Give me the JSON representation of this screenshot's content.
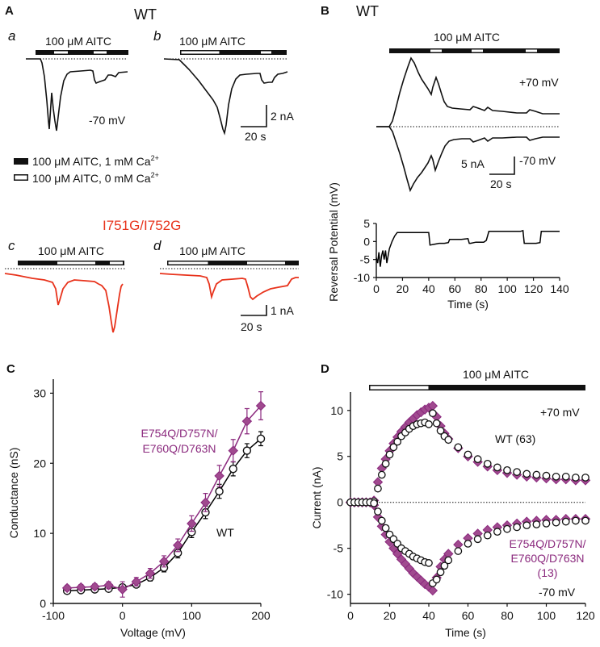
{
  "panel_letters": {
    "A": "A",
    "B": "B",
    "C": "C",
    "D": "D"
  },
  "subpanel_letters": {
    "a": "a",
    "b": "b",
    "c": "c",
    "d": "d"
  },
  "labels": {
    "wt": "WT",
    "aitc": "100 μM AITC",
    "mutant_title": "I751G/I752G",
    "minus70": "-70 mV",
    "plus70": "+70 mV",
    "scale_2nA": "2 nA",
    "scale_20s": "20 s",
    "scale_5nA": "5 nA",
    "scale_1nA": "1 nA",
    "legend_filled_main": "100 μM AITC, 1 mM Ca",
    "legend_empty_main": "100 μM AITC, 0 mM Ca",
    "superscript_2plus": "2+",
    "colors": {
      "wt": "#000000",
      "mutant_red": "#e8331c",
      "mutant_purple": "#8b2a7e",
      "marker_fill_purple": "#a04a8f"
    }
  },
  "chart_data": [
    {
      "id": "B-bottom",
      "type": "line",
      "title": "",
      "xlabel": "Time (s)",
      "ylabel": "Reversal Potential (mV)",
      "xlim": [
        0,
        140
      ],
      "ylim": [
        -10,
        5
      ],
      "xticks": [
        0,
        20,
        40,
        60,
        80,
        100,
        120,
        140
      ],
      "yticks": [
        5,
        0,
        -5,
        -10
      ],
      "series": [
        {
          "name": "WT",
          "x": [
            0,
            1,
            2,
            3,
            4,
            5,
            6,
            7,
            8,
            10,
            12,
            14,
            16,
            18,
            20,
            25,
            30,
            35,
            40,
            41,
            44,
            48,
            52,
            55,
            56,
            60,
            65,
            70,
            71,
            72,
            76,
            80,
            82,
            84,
            86,
            90,
            95,
            100,
            105,
            110,
            112,
            113,
            114,
            118,
            122,
            125,
            126,
            130,
            135,
            140
          ],
          "y": [
            -4.5,
            -6,
            -3,
            -7,
            -4,
            -2.5,
            -5,
            -2.5,
            -6,
            -2,
            0,
            1.5,
            2.5,
            2.5,
            2.5,
            2.5,
            2.5,
            2.5,
            2.5,
            -1,
            -0.8,
            -0.5,
            -0.5,
            -0.3,
            0.6,
            0.6,
            0.6,
            0.8,
            -0.5,
            -0.5,
            -0.2,
            -0.2,
            -0.2,
            0.3,
            2.8,
            2.8,
            2.8,
            2.8,
            2.8,
            2.8,
            3,
            -0.5,
            -0.5,
            -0.5,
            -0.5,
            -0.3,
            2.8,
            2.8,
            2.8,
            2.8
          ]
        }
      ]
    },
    {
      "id": "C",
      "type": "line",
      "title": "",
      "xlabel": "Voltage (mV)",
      "ylabel": "Conductance (nS)",
      "xlim": [
        -100,
        200
      ],
      "ylim": [
        0,
        32
      ],
      "xticks": [
        -100,
        0,
        100,
        200
      ],
      "yticks": [
        0,
        10,
        20,
        30
      ],
      "series": [
        {
          "name": "WT",
          "x": [
            -80,
            -60,
            -40,
            -20,
            0,
            20,
            40,
            60,
            80,
            100,
            120,
            140,
            160,
            180,
            200
          ],
          "y": [
            1.8,
            1.9,
            2.0,
            2.1,
            2.3,
            2.7,
            3.7,
            5.1,
            7.2,
            10.2,
            13.0,
            16.0,
            19.2,
            21.8,
            23.5
          ],
          "err": [
            0.3,
            0.3,
            0.3,
            0.3,
            0.4,
            0.4,
            0.5,
            0.6,
            0.7,
            0.8,
            0.9,
            1.0,
            1.0,
            1.0,
            1.0
          ]
        },
        {
          "name": "E754Q/D757N/ E760Q/D763N",
          "x": [
            -80,
            -60,
            -40,
            -20,
            0,
            20,
            40,
            60,
            80,
            100,
            120,
            140,
            160,
            180,
            200
          ],
          "y": [
            2.2,
            2.3,
            2.4,
            2.6,
            2.0,
            3.1,
            4.3,
            6.0,
            8.3,
            11.4,
            14.4,
            18.2,
            21.8,
            26.0,
            28.2
          ],
          "err": [
            0.4,
            0.4,
            0.4,
            0.5,
            1.1,
            0.6,
            0.7,
            0.8,
            0.9,
            1.1,
            1.3,
            1.5,
            1.6,
            1.8,
            2.0
          ]
        }
      ],
      "annotations": [
        "E754Q/D757N/",
        "E760Q/D763N",
        "WT"
      ]
    },
    {
      "id": "D",
      "type": "scatter",
      "title": "100 μM AITC",
      "xlabel": "Time (s)",
      "ylabel": "Current (nA)",
      "xlim": [
        0,
        120
      ],
      "ylim": [
        -11,
        12
      ],
      "xticks": [
        0,
        20,
        40,
        60,
        80,
        100,
        120
      ],
      "yticks": [
        10,
        5,
        0,
        -5,
        -10
      ],
      "series": [
        {
          "name": "WT (63) +70 mV",
          "x": [
            0,
            2,
            4,
            6,
            8,
            10,
            12,
            14,
            16,
            18,
            20,
            22,
            24,
            26,
            28,
            30,
            32,
            34,
            36,
            38,
            40,
            42,
            44,
            46,
            48,
            50,
            55,
            60,
            65,
            70,
            75,
            80,
            85,
            90,
            95,
            100,
            105,
            110,
            115,
            120
          ],
          "y": [
            0,
            0,
            0,
            0,
            0,
            0,
            0.1,
            1.5,
            3.0,
            4.2,
            5.2,
            6.0,
            6.6,
            7.2,
            7.6,
            8.0,
            8.3,
            8.5,
            8.6,
            8.7,
            8.5,
            9.7,
            8.6,
            7.8,
            7.2,
            6.8,
            6.0,
            5.2,
            4.7,
            4.2,
            3.8,
            3.5,
            3.3,
            3.1,
            3.0,
            2.9,
            2.8,
            2.8,
            2.7,
            2.7
          ]
        },
        {
          "name": "WT (63) -70 mV",
          "x": [
            0,
            2,
            4,
            6,
            8,
            10,
            12,
            14,
            16,
            18,
            20,
            22,
            24,
            26,
            28,
            30,
            32,
            34,
            36,
            38,
            40,
            42,
            44,
            46,
            48,
            50,
            55,
            60,
            65,
            70,
            75,
            80,
            85,
            90,
            95,
            100,
            105,
            110,
            115,
            120
          ],
          "y": [
            0,
            0,
            0,
            0,
            0,
            0,
            -0.1,
            -1.0,
            -2.0,
            -2.8,
            -3.5,
            -4.0,
            -4.5,
            -5.0,
            -5.3,
            -5.6,
            -5.9,
            -6.1,
            -6.3,
            -6.5,
            -6.6,
            -8.8,
            -8.4,
            -7.6,
            -6.9,
            -6.3,
            -5.3,
            -4.5,
            -4.0,
            -3.6,
            -3.2,
            -2.9,
            -2.7,
            -2.5,
            -2.4,
            -2.3,
            -2.2,
            -2.1,
            -2.0,
            -2.0
          ]
        },
        {
          "name": "E754Q/D757N/E760Q/D763N (13) +70 mV",
          "x": [
            0,
            2,
            4,
            6,
            8,
            10,
            12,
            14,
            16,
            18,
            20,
            22,
            24,
            26,
            28,
            30,
            32,
            34,
            36,
            38,
            40,
            42,
            44,
            46,
            48,
            50,
            55,
            60,
            65,
            70,
            75,
            80,
            85,
            90,
            95,
            100,
            105,
            110,
            115,
            120
          ],
          "y": [
            0,
            0,
            0,
            0,
            0,
            0,
            0.2,
            2.2,
            3.7,
            4.7,
            5.6,
            6.4,
            7.1,
            7.7,
            8.2,
            8.7,
            9.1,
            9.5,
            9.8,
            10.1,
            10.3,
            10.5,
            9.3,
            8.3,
            7.5,
            6.9,
            5.9,
            5.0,
            4.4,
            3.9,
            3.5,
            3.2,
            3.0,
            2.8,
            2.7,
            2.6,
            2.5,
            2.5,
            2.4,
            2.4
          ]
        },
        {
          "name": "E754Q/D757N/E760Q/D763N (13) -70 mV",
          "x": [
            0,
            2,
            4,
            6,
            8,
            10,
            12,
            14,
            16,
            18,
            20,
            22,
            24,
            26,
            28,
            30,
            32,
            34,
            36,
            38,
            40,
            42,
            44,
            46,
            48,
            50,
            55,
            60,
            65,
            70,
            75,
            80,
            85,
            90,
            95,
            100,
            105,
            110,
            115,
            120
          ],
          "y": [
            0,
            0,
            0,
            0,
            0,
            0,
            -0.3,
            -1.6,
            -2.6,
            -3.5,
            -4.3,
            -5.0,
            -5.6,
            -6.2,
            -6.7,
            -7.2,
            -7.7,
            -8.1,
            -8.5,
            -8.9,
            -9.2,
            -9.6,
            -8.2,
            -7.0,
            -6.2,
            -5.6,
            -4.6,
            -3.9,
            -3.4,
            -3.0,
            -2.7,
            -2.5,
            -2.3,
            -2.1,
            -2.0,
            -1.9,
            -1.9,
            -1.8,
            -1.8,
            -1.8
          ]
        }
      ],
      "annotations": [
        "+70 mV",
        "WT (63)",
        "E754Q/D757N/",
        "E760Q/D763N",
        "(13)",
        "-70 mV"
      ]
    }
  ]
}
